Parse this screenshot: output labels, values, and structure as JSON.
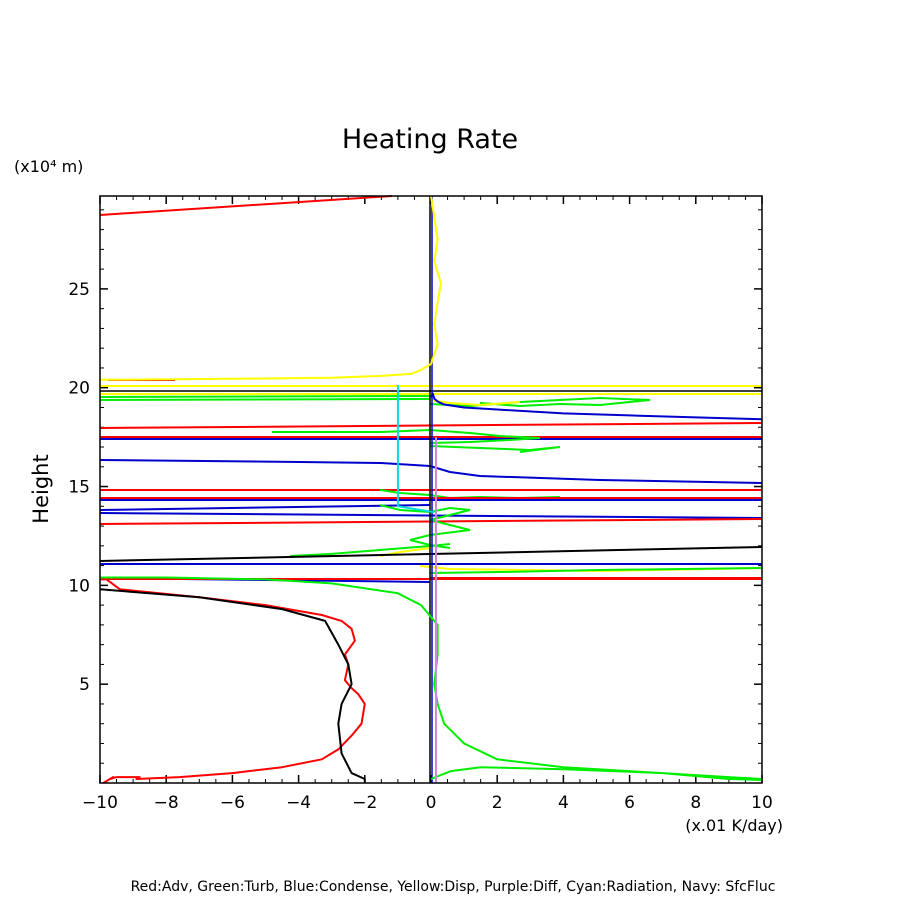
{
  "chart_data": {
    "type": "line",
    "title": "Heating Rate",
    "ylabel": "Height",
    "yunit": "(x10⁴ m)",
    "xunit": "(x.01 K/day)",
    "xlim": [
      -10,
      10
    ],
    "ylim": [
      0,
      29.7
    ],
    "xticks": [
      -10,
      -8,
      -6,
      -4,
      -2,
      0,
      2,
      4,
      6,
      8,
      10
    ],
    "yticks": [
      5,
      10,
      15,
      20,
      25
    ],
    "grid": false,
    "legend_text": "Red:Adv, Green:Turb, Blue:Condense, Yellow:Disp, Purple:Diff, Cyan:Radiation, Navy: SfcFluc",
    "legend_position": "bottom",
    "series": [
      {
        "name": "Adv",
        "color": "#ff0000",
        "x": [
          -9.9,
          -9.6,
          -9.7,
          -9.5,
          -8.8,
          -8.9,
          -7.6,
          -6,
          -4.5,
          -3.3,
          -2.8,
          -2.4,
          -2.1,
          -2.0,
          -2.2,
          -2.4,
          -2.6,
          -2.5,
          -2.6,
          -2.3,
          -2.4,
          -2.7,
          -3.3,
          -5,
          -7,
          -9.4,
          -9.8,
          -10
        ],
        "y": [
          0,
          0.3,
          0.2,
          0.3,
          0.3,
          0.2,
          0.3,
          0.5,
          0.8,
          1.2,
          1.7,
          2.4,
          3.0,
          4.0,
          4.5,
          4.8,
          5.2,
          6.0,
          6.5,
          7.2,
          7.8,
          8.2,
          8.5,
          9.0,
          9.4,
          9.8,
          10.3,
          10.3
        ]
      },
      {
        "name": "Turb",
        "color": "#00ee00",
        "x": [
          0,
          0.6,
          1.5,
          4,
          7,
          9,
          10,
          10,
          9,
          7,
          4,
          2,
          1,
          0.4,
          0.2,
          0.1,
          0.2,
          0.2,
          -0.3,
          -1.0,
          -3,
          -5,
          -8,
          -10
        ],
        "y": [
          0.2,
          0.6,
          0.8,
          0.7,
          0.5,
          0.3,
          0.2,
          0.15,
          0.2,
          0.5,
          0.8,
          1.2,
          2.0,
          3.0,
          4.0,
          5.0,
          6.5,
          8.0,
          9.0,
          9.6,
          10.1,
          10.3,
          10.4,
          10.4
        ]
      },
      {
        "name": "Condense",
        "color": "#0000cc",
        "x": [
          0,
          0.05,
          0.1,
          0.2,
          0.4,
          1.0,
          2.0,
          4.0,
          6.0,
          8.0,
          10.0
        ],
        "y": [
          19.5,
          19.7,
          19.45,
          19.3,
          19.15,
          19.0,
          18.9,
          18.7,
          18.6,
          18.5,
          18.4
        ]
      },
      {
        "name": "Disp",
        "color": "#ffff00",
        "x": [
          0,
          0.1,
          0.2,
          0.1,
          0.3,
          0.2,
          0.1,
          0.2,
          0.0,
          -0.3,
          -0.6,
          -1.5,
          -3,
          -6,
          -10
        ],
        "y": [
          29.7,
          28.6,
          27.5,
          26.4,
          25.3,
          24.3,
          23.2,
          22.2,
          21.2,
          20.9,
          20.7,
          20.6,
          20.5,
          20.45,
          20.4
        ]
      },
      {
        "name": "Diff",
        "color": "#cc88dd",
        "x": [
          0.15,
          0.15
        ],
        "y": [
          0,
          17.5
        ]
      },
      {
        "name": "Radiation",
        "color": "#00dddd",
        "x": [
          -1.0,
          -1.0,
          -1.0,
          0.1
        ],
        "y": [
          19.9,
          20.1,
          14.0,
          13.7
        ]
      },
      {
        "name": "SfcFluc",
        "color": "#000000",
        "x": [
          -10,
          -7,
          -4.5,
          -3.2,
          -2.8,
          -2.5,
          -2.4,
          -2.7,
          -2.8,
          -2.7,
          -2.4,
          -2.0,
          -2.0
        ],
        "y": [
          9.8,
          9.4,
          8.8,
          8.2,
          7.0,
          6.0,
          5.0,
          4.0,
          3.0,
          1.5,
          0.5,
          0.2,
          0.0
        ]
      }
    ]
  }
}
